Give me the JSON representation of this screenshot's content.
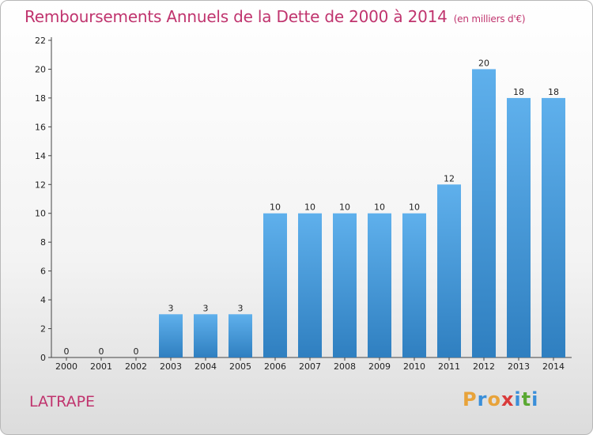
{
  "title": "Remboursements Annuels de la Dette de 2000 à 2014",
  "subtitle": "(en milliers d'€)",
  "commune": "LATRAPE",
  "logo": {
    "letters": [
      "P",
      "r",
      "o",
      "x",
      "i",
      "t",
      "i"
    ],
    "colors": [
      "#e8a33a",
      "#3a8fd9",
      "#e8a33a",
      "#d93a3a",
      "#3a8fd9",
      "#5aa832",
      "#3a8fd9"
    ]
  },
  "colors": {
    "bar": "#3f97da",
    "bar_top": "#5fb0ec",
    "bar_bottom": "#2f7fc0",
    "accent": "#c0346e"
  },
  "chart_data": {
    "type": "bar",
    "categories": [
      "2000",
      "2001",
      "2002",
      "2003",
      "2004",
      "2005",
      "2006",
      "2007",
      "2008",
      "2009",
      "2010",
      "2011",
      "2012",
      "2013",
      "2014"
    ],
    "values": [
      0,
      0,
      0,
      3,
      3,
      3,
      10,
      10,
      10,
      10,
      10,
      12,
      20,
      18,
      18
    ],
    "ylim": [
      0,
      22
    ],
    "yticks": [
      0,
      2,
      4,
      6,
      8,
      10,
      12,
      14,
      16,
      18,
      20,
      22
    ],
    "grid": false
  }
}
